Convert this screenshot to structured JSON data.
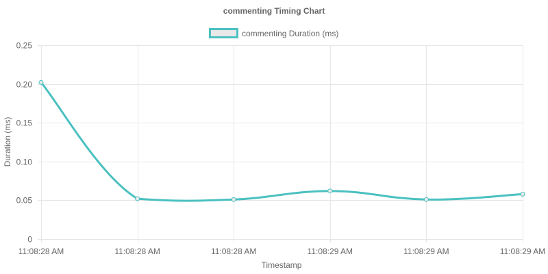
{
  "chart_data": {
    "type": "line",
    "title": "commenting Timing Chart",
    "xlabel": "Timestamp",
    "ylabel": "Duration (ms)",
    "categories": [
      "11:08:28 AM",
      "11:08:28 AM",
      "11:08:28 AM",
      "11:08:29 AM",
      "11:08:29 AM",
      "11:08:29 AM"
    ],
    "series": [
      {
        "name": "commenting Duration (ms)",
        "values": [
          0.202,
          0.052,
          0.051,
          0.062,
          0.051,
          0.058
        ],
        "color": "#4bc0c0",
        "fill": "#e8e8e8"
      }
    ],
    "ylim": [
      0,
      0.25
    ],
    "yticks": [
      "0",
      "0.05",
      "0.10",
      "0.15",
      "0.20",
      "0.25"
    ],
    "ytick_values": [
      0,
      0.05,
      0.1,
      0.15,
      0.2,
      0.25
    ],
    "grid": true,
    "legend_position": "top-center",
    "grid_color": "#e6e6e6"
  }
}
